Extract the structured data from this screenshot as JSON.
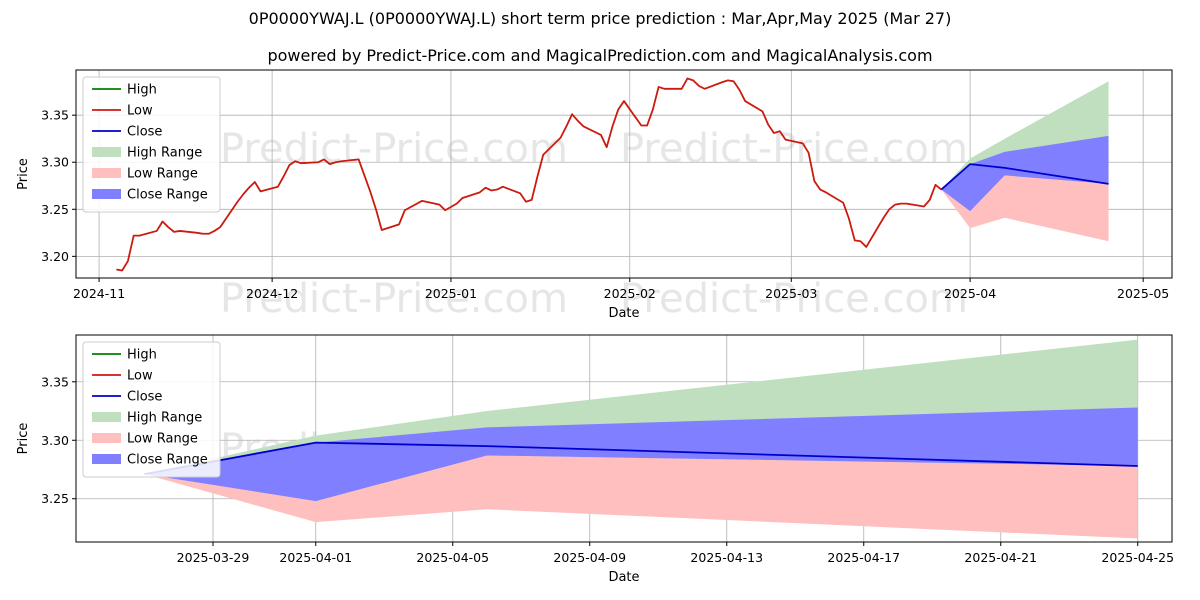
{
  "header": {
    "title": "0P0000YWAJ.L (0P0000YWAJ.L) short term price prediction : Mar,Apr,May 2025 (Mar 27)",
    "subtitle": "powered by Predict-Price.com and MagicalPrediction.com and MagicalAnalysis.com"
  },
  "watermark": "Predict-Price.com",
  "colors": {
    "high": "#008000",
    "low": "#cc1a10",
    "close": "#0000cc",
    "high_range": "#bfdfbf",
    "low_range": "#ffbfbf",
    "close_range": "#7f7fff"
  },
  "chart_data": [
    {
      "type": "line",
      "xlabel": "Date",
      "ylabel": "Price",
      "ylim": [
        3.177,
        3.398
      ],
      "xlim": [
        "2024-10-28",
        "2025-05-06"
      ],
      "yticks": [
        3.2,
        3.25,
        3.3,
        3.35
      ],
      "ytick_labels": [
        "3.20",
        "3.25",
        "3.30",
        "3.35"
      ],
      "xticks": [
        "2024-11-01",
        "2024-12-01",
        "2025-01-01",
        "2025-02-01",
        "2025-03-01",
        "2025-04-01",
        "2025-05-01"
      ],
      "xtick_labels": [
        "2024-11",
        "2024-12",
        "2025-01",
        "2025-02",
        "2025-03",
        "2025-04",
        "2025-05"
      ],
      "grid": true,
      "legend_position": "top-left",
      "legend": [
        "High",
        "Low",
        "Close",
        "High Range",
        "Low Range",
        "Close Range"
      ],
      "series": [
        {
          "name": "Low",
          "x": [
            "2024-11-04",
            "2024-11-05",
            "2024-11-06",
            "2024-11-07",
            "2024-11-08",
            "2024-11-11",
            "2024-11-12",
            "2024-11-13",
            "2024-11-14",
            "2024-11-15",
            "2024-11-18",
            "2024-11-19",
            "2024-11-20",
            "2024-11-21",
            "2024-11-22",
            "2024-11-25",
            "2024-11-26",
            "2024-11-27",
            "2024-11-28",
            "2024-11-29",
            "2024-12-02",
            "2024-12-03",
            "2024-12-04",
            "2024-12-05",
            "2024-12-06",
            "2024-12-09",
            "2024-12-10",
            "2024-12-11",
            "2024-12-12",
            "2024-12-13",
            "2024-12-16",
            "2024-12-17",
            "2024-12-18",
            "2024-12-19",
            "2024-12-20",
            "2024-12-23",
            "2024-12-24",
            "2024-12-27",
            "2024-12-30",
            "2024-12-31",
            "2025-01-02",
            "2025-01-03",
            "2025-01-06",
            "2025-01-07",
            "2025-01-08",
            "2025-01-09",
            "2025-01-10",
            "2025-01-13",
            "2025-01-14",
            "2025-01-15",
            "2025-01-16",
            "2025-01-17",
            "2025-01-20",
            "2025-01-21",
            "2025-01-22",
            "2025-01-23",
            "2025-01-24",
            "2025-01-27",
            "2025-01-28",
            "2025-01-29",
            "2025-01-30",
            "2025-01-31",
            "2025-02-03",
            "2025-02-04",
            "2025-02-05",
            "2025-02-06",
            "2025-02-07",
            "2025-02-10",
            "2025-02-11",
            "2025-02-12",
            "2025-02-13",
            "2025-02-14",
            "2025-02-17",
            "2025-02-18",
            "2025-02-19",
            "2025-02-20",
            "2025-02-21",
            "2025-02-24",
            "2025-02-25",
            "2025-02-26",
            "2025-02-27",
            "2025-02-28",
            "2025-03-03",
            "2025-03-04",
            "2025-03-05",
            "2025-03-06",
            "2025-03-07",
            "2025-03-10",
            "2025-03-11",
            "2025-03-12",
            "2025-03-13",
            "2025-03-14",
            "2025-03-17",
            "2025-03-18",
            "2025-03-19",
            "2025-03-20",
            "2025-03-21",
            "2025-03-24",
            "2025-03-25",
            "2025-03-26",
            "2025-03-27"
          ],
          "values": [
            3.186,
            3.185,
            3.195,
            3.222,
            3.222,
            3.227,
            3.237,
            3.231,
            3.226,
            3.227,
            3.225,
            3.224,
            3.224,
            3.227,
            3.231,
            3.258,
            3.266,
            3.273,
            3.279,
            3.269,
            3.274,
            3.285,
            3.297,
            3.301,
            3.299,
            3.3,
            3.303,
            3.298,
            3.3,
            3.301,
            3.303,
            3.286,
            3.269,
            3.25,
            3.228,
            3.234,
            3.249,
            3.259,
            3.255,
            3.249,
            3.256,
            3.262,
            3.268,
            3.273,
            3.27,
            3.271,
            3.274,
            3.267,
            3.258,
            3.26,
            3.285,
            3.308,
            3.326,
            3.338,
            3.351,
            3.344,
            3.338,
            3.329,
            3.316,
            3.338,
            3.356,
            3.365,
            3.339,
            3.339,
            3.356,
            3.38,
            3.378,
            3.378,
            3.389,
            3.387,
            3.381,
            3.378,
            3.385,
            3.387,
            3.386,
            3.377,
            3.365,
            3.354,
            3.34,
            3.331,
            3.333,
            3.324,
            3.32,
            3.31,
            3.28,
            3.271,
            3.268,
            3.257,
            3.24,
            3.217,
            3.216,
            3.21,
            3.241,
            3.25,
            3.255,
            3.256,
            3.256,
            3.253,
            3.26,
            3.276,
            3.271
          ]
        },
        {
          "name": "Close",
          "x": [
            "2025-03-27",
            "2025-04-01",
            "2025-04-07",
            "2025-04-25"
          ],
          "values": [
            3.271,
            3.298,
            3.294,
            3.277
          ]
        },
        {
          "name": "High Range",
          "x": [
            "2025-03-27",
            "2025-04-01",
            "2025-04-07",
            "2025-04-25"
          ],
          "upper": [
            3.271,
            3.304,
            3.325,
            3.386
          ],
          "lower": [
            3.271,
            3.248,
            3.286,
            3.277
          ]
        },
        {
          "name": "Low Range",
          "x": [
            "2025-03-27",
            "2025-04-01",
            "2025-04-07",
            "2025-04-25"
          ],
          "upper": [
            3.271,
            3.248,
            3.286,
            3.277
          ],
          "lower": [
            3.271,
            3.23,
            3.241,
            3.216
          ]
        },
        {
          "name": "Close Range",
          "x": [
            "2025-03-27",
            "2025-04-01",
            "2025-04-07",
            "2025-04-25"
          ],
          "upper": [
            3.271,
            3.298,
            3.311,
            3.328
          ],
          "lower": [
            3.271,
            3.248,
            3.286,
            3.277
          ]
        }
      ]
    },
    {
      "type": "line",
      "xlabel": "Date",
      "ylabel": "Price",
      "ylim": [
        3.213,
        3.39
      ],
      "xlim": [
        "2025-03-25",
        "2025-04-26"
      ],
      "yticks": [
        3.25,
        3.3,
        3.35
      ],
      "ytick_labels": [
        "3.25",
        "3.30",
        "3.35"
      ],
      "xticks": [
        "2025-03-29",
        "2025-04-01",
        "2025-04-05",
        "2025-04-09",
        "2025-04-13",
        "2025-04-17",
        "2025-04-21",
        "2025-04-25"
      ],
      "xtick_labels": [
        "2025-03-29",
        "2025-04-01",
        "2025-04-05",
        "2025-04-09",
        "2025-04-13",
        "2025-04-17",
        "2025-04-21",
        "2025-04-25"
      ],
      "grid": true,
      "legend_position": "top-left",
      "legend": [
        "High",
        "Low",
        "Close",
        "High Range",
        "Low Range",
        "Close Range"
      ],
      "series": [
        {
          "name": "Close",
          "x": [
            "2025-03-27",
            "2025-04-01",
            "2025-04-06",
            "2025-04-25"
          ],
          "values": [
            3.271,
            3.298,
            3.295,
            3.278
          ]
        },
        {
          "name": "High Range",
          "x": [
            "2025-03-27",
            "2025-04-01",
            "2025-04-06",
            "2025-04-25"
          ],
          "upper": [
            3.271,
            3.304,
            3.325,
            3.386
          ],
          "lower": [
            3.271,
            3.248,
            3.287,
            3.278
          ]
        },
        {
          "name": "Low Range",
          "x": [
            "2025-03-27",
            "2025-04-01",
            "2025-04-06",
            "2025-04-25"
          ],
          "upper": [
            3.271,
            3.248,
            3.287,
            3.278
          ],
          "lower": [
            3.271,
            3.23,
            3.241,
            3.216
          ]
        },
        {
          "name": "Close Range",
          "x": [
            "2025-03-27",
            "2025-04-01",
            "2025-04-06",
            "2025-04-25"
          ],
          "upper": [
            3.271,
            3.298,
            3.311,
            3.328
          ],
          "lower": [
            3.271,
            3.248,
            3.287,
            3.278
          ]
        }
      ]
    }
  ]
}
